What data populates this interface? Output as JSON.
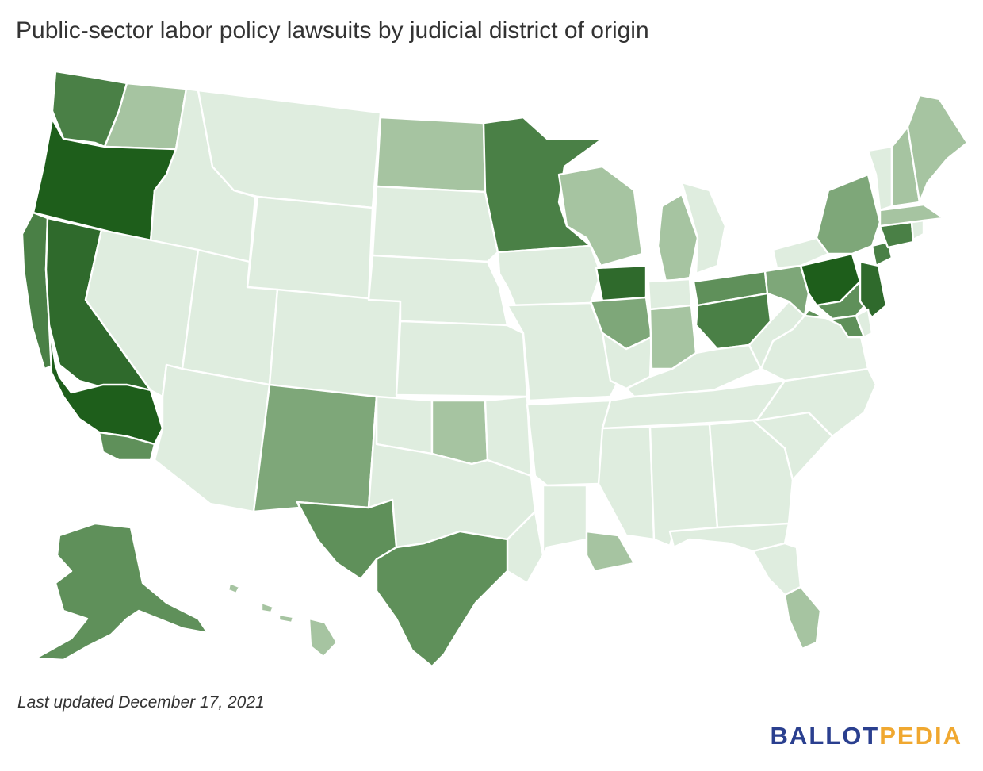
{
  "title": "Public-sector labor policy lawsuits by judicial district of origin",
  "footnote": "Last updated December 17, 2021",
  "logo": {
    "part1": "BALLOT",
    "part2": "PEDIA",
    "color1": "#2a3f8f",
    "color2": "#f0a830"
  },
  "legend_scale": {
    "level0": "#dfeddf",
    "level1": "#a6c4a1",
    "level2": "#7ea779",
    "level3": "#5f905a",
    "level4": "#4a8046",
    "level5": "#2f6a2c",
    "level6": "#1e5e1b"
  },
  "regions": [
    {
      "id": "WA-W",
      "level": 4
    },
    {
      "id": "WA-E",
      "level": 1
    },
    {
      "id": "OR",
      "level": 6
    },
    {
      "id": "CA-N",
      "level": 4
    },
    {
      "id": "CA-E",
      "level": 5
    },
    {
      "id": "CA-C",
      "level": 6
    },
    {
      "id": "CA-S",
      "level": 3
    },
    {
      "id": "ID",
      "level": 0
    },
    {
      "id": "MT",
      "level": 0
    },
    {
      "id": "WY",
      "level": 0
    },
    {
      "id": "NV",
      "level": 0
    },
    {
      "id": "UT",
      "level": 0
    },
    {
      "id": "AZ",
      "level": 0
    },
    {
      "id": "CO",
      "level": 0
    },
    {
      "id": "NM",
      "level": 2
    },
    {
      "id": "ND",
      "level": 1
    },
    {
      "id": "SD",
      "level": 0
    },
    {
      "id": "NE",
      "level": 0
    },
    {
      "id": "KS",
      "level": 0
    },
    {
      "id": "OK-W",
      "level": 0
    },
    {
      "id": "OK-C",
      "level": 1
    },
    {
      "id": "OK-E",
      "level": 0
    },
    {
      "id": "TX-N",
      "level": 0
    },
    {
      "id": "TX-W",
      "level": 3
    },
    {
      "id": "TX-E",
      "level": 0
    },
    {
      "id": "TX-S",
      "level": 3
    },
    {
      "id": "MN",
      "level": 4
    },
    {
      "id": "IA",
      "level": 0
    },
    {
      "id": "MO",
      "level": 0
    },
    {
      "id": "AR",
      "level": 0
    },
    {
      "id": "LA-W",
      "level": 0
    },
    {
      "id": "LA-E",
      "level": 1
    },
    {
      "id": "WI",
      "level": 1
    },
    {
      "id": "IL-N",
      "level": 5
    },
    {
      "id": "IL-C",
      "level": 2
    },
    {
      "id": "IL-S",
      "level": 0
    },
    {
      "id": "MI-W",
      "level": 1
    },
    {
      "id": "MI-E",
      "level": 0
    },
    {
      "id": "IN-N",
      "level": 0
    },
    {
      "id": "IN-S",
      "level": 1
    },
    {
      "id": "OH-N",
      "level": 3
    },
    {
      "id": "OH-S",
      "level": 4
    },
    {
      "id": "KY",
      "level": 0
    },
    {
      "id": "TN",
      "level": 0
    },
    {
      "id": "MS",
      "level": 0
    },
    {
      "id": "AL",
      "level": 0
    },
    {
      "id": "GA",
      "level": 0
    },
    {
      "id": "FL-N",
      "level": 0
    },
    {
      "id": "FL-M",
      "level": 0
    },
    {
      "id": "FL-S",
      "level": 1
    },
    {
      "id": "SC",
      "level": 0
    },
    {
      "id": "NC",
      "level": 0
    },
    {
      "id": "VA",
      "level": 0
    },
    {
      "id": "WV",
      "level": 0
    },
    {
      "id": "PA-W",
      "level": 2
    },
    {
      "id": "PA-M",
      "level": 6
    },
    {
      "id": "PA-E",
      "level": 3
    },
    {
      "id": "NY-W",
      "level": 0
    },
    {
      "id": "NY-N",
      "level": 2
    },
    {
      "id": "NY-S",
      "level": 4
    },
    {
      "id": "NJ",
      "level": 5
    },
    {
      "id": "MD",
      "level": 3
    },
    {
      "id": "DE",
      "level": 0
    },
    {
      "id": "CT",
      "level": 4
    },
    {
      "id": "RI",
      "level": 0
    },
    {
      "id": "MA",
      "level": 1
    },
    {
      "id": "VT",
      "level": 0
    },
    {
      "id": "NH",
      "level": 1
    },
    {
      "id": "ME",
      "level": 1
    },
    {
      "id": "AK",
      "level": 3
    },
    {
      "id": "HI",
      "level": 1
    }
  ]
}
